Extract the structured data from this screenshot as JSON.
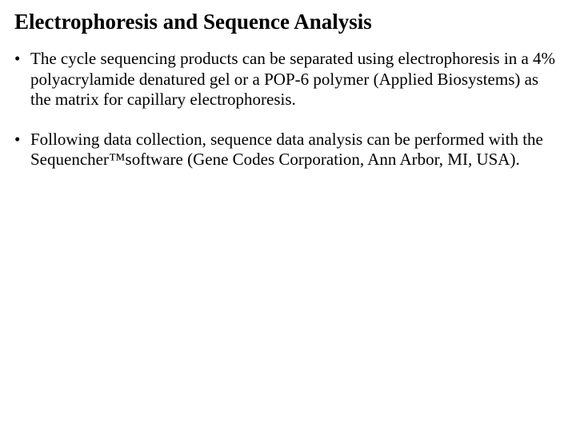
{
  "title": "Electrophoresis and Sequence Analysis",
  "bullets": [
    "The cycle sequencing products can be separated using electrophoresis in a 4% polyacrylamide denatured gel or a POP-6 polymer (Applied Biosystems) as the matrix for capillary electrophoresis.",
    "Following data collection, sequence data analysis can be performed with the Sequencher™software (Gene Codes Corporation, Ann Arbor, MI, USA)."
  ]
}
